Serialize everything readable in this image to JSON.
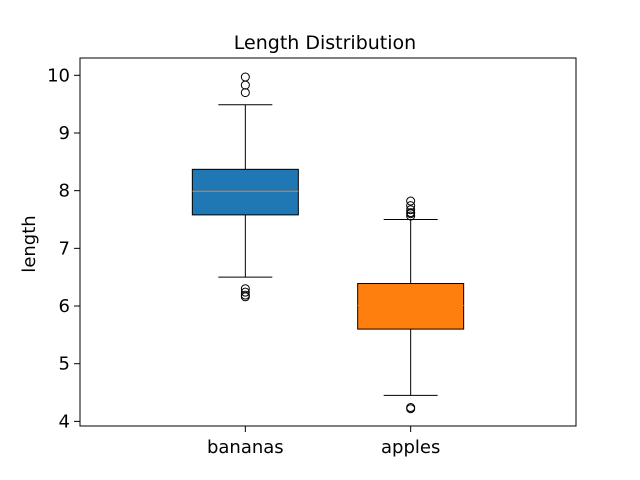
{
  "chart_data": {
    "type": "boxplot",
    "title": "Length Distribution",
    "xlabel": "",
    "ylabel": "length",
    "ylim": [
      3.92,
      10.3
    ],
    "yticks": [
      "4",
      "5",
      "6",
      "7",
      "8",
      "9",
      "10"
    ],
    "grid": false,
    "categories": [
      "bananas",
      "apples"
    ],
    "boxes": [
      {
        "category": "bananas",
        "color": "#1f77b4",
        "whisker_low": 6.5,
        "q1": 7.58,
        "median": 7.99,
        "q3": 8.37,
        "whisker_high": 9.49,
        "outliers": [
          6.16,
          6.19,
          6.24,
          6.3,
          9.7,
          9.83,
          9.97
        ]
      },
      {
        "category": "apples",
        "color": "#ff7f0e",
        "whisker_low": 4.45,
        "q1": 5.6,
        "median": 6.01,
        "q3": 6.39,
        "whisker_high": 7.5,
        "outliers": [
          4.22,
          4.24,
          7.56,
          7.6,
          7.62,
          7.67,
          7.74,
          7.82
        ]
      }
    ],
    "median_color": "#ff7f0e"
  }
}
